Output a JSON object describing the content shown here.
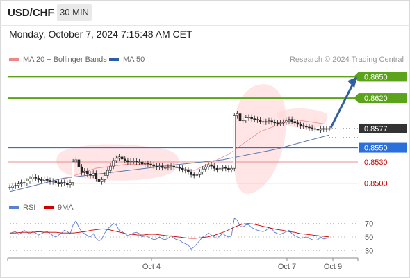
{
  "header": {
    "pair": "USD/CHF",
    "timeframe": "30 MIN"
  },
  "datetime": "Monday, October 7, 2024 7:15:48 AM CET",
  "legend": {
    "ma20": "MA 20 + Bollinger Bands",
    "ma50": "MA 50",
    "source": "Research © 2024 Trading Central"
  },
  "rsi_legend": {
    "rsi": "RSI",
    "ma9": "9MA"
  },
  "colors": {
    "up_level": "#5aa31a",
    "down_level": "#cc0000",
    "pivot": "#2a6fdb",
    "arrow": "#2f5f9e",
    "price": "#333333",
    "rsi": "#5b7fd6",
    "rsi_ma": "#cc0000",
    "ma20": "#ee8888",
    "ma50": "#5a78b0",
    "band": "#ffdada"
  },
  "chart_data": [
    {
      "type": "candlestick",
      "ylim": [
        0.8482,
        0.867
      ],
      "x_ticks": [
        "Oct 4",
        "Oct 7",
        "Oct 9"
      ],
      "levels": [
        {
          "value": 0.865,
          "label": "0.8650",
          "kind": "resistance"
        },
        {
          "value": 0.862,
          "label": "0.8620",
          "kind": "resistance"
        },
        {
          "value": 0.8577,
          "label": "0.8577",
          "kind": "last"
        },
        {
          "value": 0.855,
          "label": "0.8550",
          "kind": "pivot"
        },
        {
          "value": 0.853,
          "label": "0.8530",
          "kind": "support"
        },
        {
          "value": 0.85,
          "label": "0.8500",
          "kind": "support"
        }
      ],
      "series": [
        {
          "name": "USD/CHF",
          "values": [
            0.8494,
            0.8496,
            0.8497,
            0.8499,
            0.8501,
            0.85,
            0.8503,
            0.8506,
            0.8509,
            0.8507,
            0.8505,
            0.8504,
            0.8506,
            0.8504,
            0.8502,
            0.8503,
            0.8501,
            0.8499,
            0.8501,
            0.85,
            0.8498,
            0.8501,
            0.853,
            0.8533,
            0.8523,
            0.8515,
            0.8517,
            0.8513,
            0.8511,
            0.8514,
            0.8506,
            0.8502,
            0.8505,
            0.8511,
            0.8518,
            0.8524,
            0.8532,
            0.8535,
            0.8537,
            0.8534,
            0.8532,
            0.853,
            0.8531,
            0.8531,
            0.853,
            0.853,
            0.8527,
            0.8528,
            0.8527,
            0.8526,
            0.8524,
            0.8523,
            0.8524,
            0.8522,
            0.8522,
            0.8523,
            0.8524,
            0.8523,
            0.8522,
            0.8521,
            0.8519,
            0.8518,
            0.8516,
            0.8512,
            0.8511,
            0.8512,
            0.8516,
            0.852,
            0.8523,
            0.8526,
            0.8524,
            0.8521,
            0.8519,
            0.8521,
            0.8522,
            0.8521,
            0.8519,
            0.8521,
            0.8595,
            0.8598,
            0.8588,
            0.8589,
            0.8592,
            0.8593,
            0.8591,
            0.859,
            0.8589,
            0.8587,
            0.8586,
            0.8587,
            0.8588,
            0.8586,
            0.8585,
            0.8584,
            0.8585,
            0.8586,
            0.8588,
            0.859,
            0.8587,
            0.8585,
            0.8583,
            0.8581,
            0.858,
            0.8579,
            0.8578,
            0.8577,
            0.8576,
            0.8575,
            0.8577,
            0.8576,
            0.8577,
            0.8577
          ]
        },
        {
          "name": "MA 50",
          "values": [
            0.8488,
            0.8507,
            0.8516,
            0.8525,
            0.8533,
            0.8548,
            0.8568
          ]
        },
        {
          "name": "MA 20",
          "values": [
            0.8505,
            0.8521,
            0.8527,
            0.8525,
            0.8518,
            0.854,
            0.8573,
            0.859,
            0.8583
          ]
        }
      ],
      "forecast": {
        "from": 0.8577,
        "to": 0.865
      }
    },
    {
      "type": "line",
      "ylim": [
        22,
        80
      ],
      "y_ticks": [
        70,
        50,
        30
      ],
      "series": [
        {
          "name": "RSI",
          "values": [
            55,
            57,
            58,
            54,
            56,
            60,
            57,
            55,
            58,
            56,
            53,
            55,
            57,
            58,
            55,
            52,
            50,
            53,
            56,
            60,
            58,
            55,
            68,
            74,
            64,
            58,
            55,
            52,
            50,
            55,
            48,
            44,
            47,
            56,
            62,
            66,
            70,
            68,
            60,
            58,
            55,
            52,
            54,
            56,
            57,
            55,
            50,
            52,
            50,
            48,
            46,
            47,
            50,
            47,
            46,
            48,
            52,
            48,
            46,
            45,
            42,
            40,
            38,
            32,
            35,
            40,
            45,
            50,
            52,
            56,
            53,
            50,
            48,
            52,
            55,
            52,
            50,
            52,
            78,
            75,
            66,
            65,
            68,
            68,
            64,
            62,
            60,
            59,
            58,
            60,
            64,
            62,
            57,
            55,
            54,
            56,
            58,
            60,
            55,
            52,
            50,
            48,
            49,
            50,
            48,
            46,
            45,
            46,
            50,
            47,
            48,
            49
          ]
        },
        {
          "name": "9MA",
          "values": [
            56,
            56,
            57,
            57,
            57,
            58,
            57,
            57,
            57,
            56,
            56,
            56,
            57,
            58,
            60,
            61,
            62,
            61,
            59,
            57,
            55,
            54,
            53,
            53,
            54,
            54,
            53,
            52,
            51,
            50,
            49,
            48,
            48,
            49,
            50,
            52,
            55,
            58,
            62,
            66,
            69,
            70,
            69,
            67,
            65,
            63,
            61,
            60,
            58,
            57,
            55,
            54,
            53,
            52,
            51,
            50
          ]
        }
      ]
    }
  ]
}
